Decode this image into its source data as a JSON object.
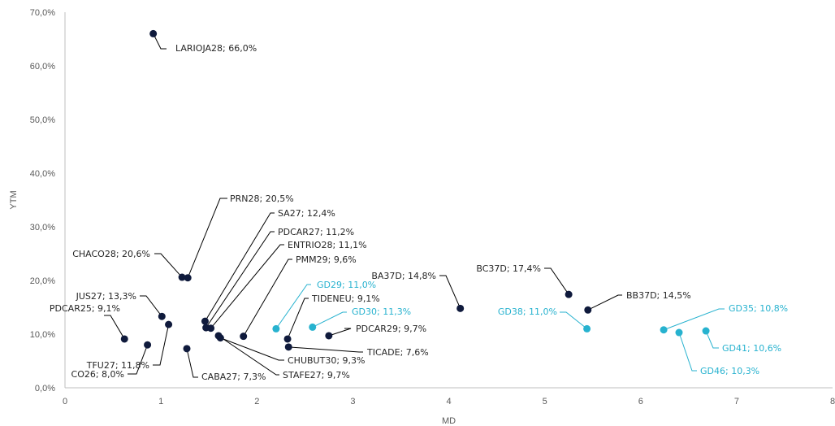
{
  "chart_data": {
    "type": "scatter",
    "xlabel": "MD",
    "ylabel": "YTM",
    "xlim": [
      0,
      8
    ],
    "ylim": [
      0,
      70
    ],
    "x_ticks": [
      "0",
      "1",
      "2",
      "3",
      "4",
      "5",
      "6",
      "7",
      "8"
    ],
    "y_ticks": [
      "0,0%",
      "10,0%",
      "20,0%",
      "30,0%",
      "40,0%",
      "50,0%",
      "60,0%",
      "70,0%"
    ],
    "grid": false,
    "colors": {
      "provincial": "#0f1a3c",
      "sovereign": "#27b2cf",
      "axis": "#bfbfbf",
      "leader": "#000000"
    },
    "points": [
      {
        "label": "LARIOJA28; 66,0%",
        "x": 0.92,
        "y": 66.0,
        "group": "provincial"
      },
      {
        "label": "PRN28; 20,5%",
        "x": 1.28,
        "y": 20.5,
        "group": "provincial"
      },
      {
        "label": "CHACO28; 20,6%",
        "x": 1.22,
        "y": 20.6,
        "group": "provincial"
      },
      {
        "label": "SA27; 12,4%",
        "x": 1.46,
        "y": 12.4,
        "group": "provincial"
      },
      {
        "label": "PDCAR27; 11,2%",
        "x": 1.47,
        "y": 11.2,
        "group": "provincial"
      },
      {
        "label": "ENTRIO28; 11,1%",
        "x": 1.52,
        "y": 11.1,
        "group": "provincial"
      },
      {
        "label": "PMM29; 9,6%",
        "x": 1.86,
        "y": 9.6,
        "group": "provincial"
      },
      {
        "label": "JUS27; 13,3%",
        "x": 1.01,
        "y": 13.3,
        "group": "provincial"
      },
      {
        "label": "PDCAR25; 9,1%",
        "x": 0.62,
        "y": 9.1,
        "group": "provincial"
      },
      {
        "label": "TFU27; 11,8%",
        "x": 1.08,
        "y": 11.8,
        "group": "provincial"
      },
      {
        "label": "CO26; 8,0%",
        "x": 0.86,
        "y": 8.0,
        "group": "provincial"
      },
      {
        "label": "CABA27; 7,3%",
        "x": 1.27,
        "y": 7.3,
        "group": "provincial"
      },
      {
        "label": "CHUBUT30; 9,3%",
        "x": 1.62,
        "y": 9.3,
        "group": "provincial"
      },
      {
        "label": "STAFE27; 9,7%",
        "x": 1.6,
        "y": 9.7,
        "group": "provincial"
      },
      {
        "label": "TIDENEU; 9,1%",
        "x": 2.32,
        "y": 9.1,
        "group": "provincial"
      },
      {
        "label": "TICADE; 7,6%",
        "x": 2.33,
        "y": 7.6,
        "group": "provincial"
      },
      {
        "label": "PDCAR29; 9,7%",
        "x": 2.75,
        "y": 9.7,
        "group": "provincial"
      },
      {
        "label": "BA37D; 14,8%",
        "x": 4.12,
        "y": 14.8,
        "group": "provincial"
      },
      {
        "label": "BC37D; 17,4%",
        "x": 5.25,
        "y": 17.4,
        "group": "provincial"
      },
      {
        "label": "BB37D; 14,5%",
        "x": 5.45,
        "y": 14.5,
        "group": "provincial"
      },
      {
        "label": "GD29; 11,0%",
        "x": 2.2,
        "y": 11.0,
        "group": "sovereign"
      },
      {
        "label": "GD30; 11,3%",
        "x": 2.58,
        "y": 11.3,
        "group": "sovereign"
      },
      {
        "label": "GD38; 11,0%",
        "x": 5.44,
        "y": 11.0,
        "group": "sovereign"
      },
      {
        "label": "GD35; 10,8%",
        "x": 6.24,
        "y": 10.8,
        "group": "sovereign"
      },
      {
        "label": "GD46; 10,3%",
        "x": 6.4,
        "y": 10.3,
        "group": "sovereign"
      },
      {
        "label": "GD41; 10,6%",
        "x": 6.68,
        "y": 10.6,
        "group": "sovereign"
      }
    ]
  }
}
